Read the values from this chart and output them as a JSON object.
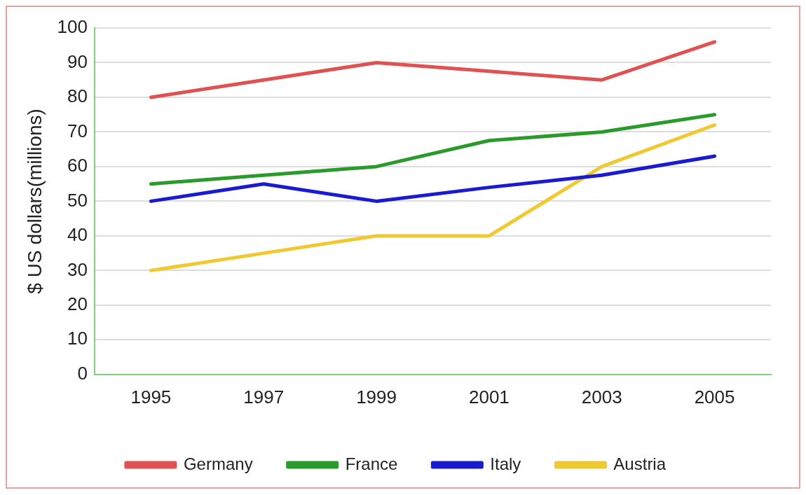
{
  "chart_data": {
    "type": "line",
    "ylabel": "$ US dollars(millions)",
    "categories": [
      "1995",
      "1997",
      "1999",
      "2001",
      "2003",
      "2005"
    ],
    "series": [
      {
        "name": "Germany",
        "color": "#e05252",
        "values": [
          80,
          85,
          90,
          87.5,
          85,
          96
        ]
      },
      {
        "name": "France",
        "color": "#2a9a2a",
        "values": [
          55,
          57.5,
          60,
          67.5,
          70,
          75
        ]
      },
      {
        "name": "Italy",
        "color": "#1a1ad0",
        "values": [
          50,
          55,
          50,
          54,
          57.5,
          63
        ]
      },
      {
        "name": "Austria",
        "color": "#f0c830",
        "values": [
          30,
          35,
          40,
          40,
          60,
          72
        ]
      }
    ],
    "ylim": [
      0,
      100
    ],
    "yticks": [
      0,
      10,
      20,
      30,
      40,
      50,
      60,
      70,
      80,
      90,
      100
    ],
    "grid": "y",
    "legend": "bottom",
    "marker": "none",
    "line_style": "solid"
  }
}
